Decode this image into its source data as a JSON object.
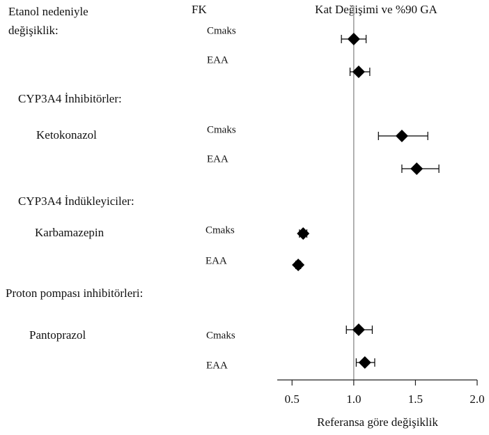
{
  "chart_data": {
    "type": "forest",
    "title": "Kat Değişimi ve %90 GA",
    "column_header": "FK",
    "xlabel": "Referansa göre değişiklik",
    "xlim": [
      0.38,
      2.0
    ],
    "xticks": [
      0.5,
      {
        "value": 1.0,
        "label": "1.0"
      },
      1.5,
      {
        "value": 2.0,
        "label": "2.0"
      }
    ],
    "reference": 1,
    "color": "#000000",
    "groups": [
      {
        "label": [
          "Etanol nedeniyle",
          "değişiklik:"
        ],
        "rows": [
          {
            "pk": "Cmaks",
            "value": 1.0,
            "lower": 0.9,
            "upper": 1.1
          },
          {
            "pk": "EAA",
            "value": 1.04,
            "lower": 0.97,
            "upper": 1.13
          }
        ]
      },
      {
        "label": [
          "CYP3A4 İnhibitörler:"
        ],
        "drug": "Ketokonazol",
        "rows": [
          {
            "pk": "Cmaks",
            "value": 1.39,
            "lower": 1.2,
            "upper": 1.6
          },
          {
            "pk": "EAA",
            "value": 1.51,
            "lower": 1.39,
            "upper": 1.69
          }
        ]
      },
      {
        "label": [
          "CYP3A4 İndükleyiciler:"
        ],
        "drug": "Karbamazepin",
        "rows": [
          {
            "pk": "Cmaks",
            "value": 0.59,
            "lower": 0.56,
            "upper": 0.62
          },
          {
            "pk": "EAA",
            "value": 0.55,
            "lower": 0.53,
            "upper": 0.57
          }
        ]
      },
      {
        "label": [
          "Proton pompası inhibitörleri:"
        ],
        "drug": "Pantoprazol",
        "rows": [
          {
            "pk": "Cmaks",
            "value": 1.04,
            "lower": 0.94,
            "upper": 1.15
          },
          {
            "pk": "EAA",
            "value": 1.09,
            "lower": 1.02,
            "upper": 1.17
          }
        ]
      }
    ]
  }
}
